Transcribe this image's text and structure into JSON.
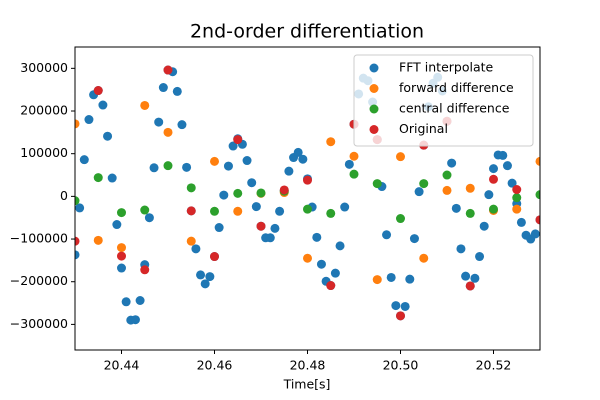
{
  "chart_data": {
    "type": "scatter",
    "title": "2nd-order differentiation",
    "x_label": "Time[s]",
    "xlim": [
      20.43,
      20.53
    ],
    "ylim": [
      -360000,
      350000
    ],
    "xticks": [
      20.44,
      20.46,
      20.48,
      {
        "value": 20.5,
        "label": "20.50"
      },
      20.52
    ],
    "yticks": [
      {
        "value": -300000,
        "label": "−300000"
      },
      {
        "value": -200000,
        "label": "−200000"
      },
      {
        "value": -100000,
        "label": "−100000"
      },
      0,
      100000,
      200000,
      300000
    ],
    "grid": false,
    "legend": "upper right",
    "series": [
      {
        "name": "FFT interpolate",
        "color": "#1f77b4",
        "x": [
          20.43,
          20.431,
          20.432,
          20.433,
          20.434,
          20.435,
          20.436,
          20.437,
          20.438,
          20.439,
          20.44,
          20.441,
          20.442,
          20.443,
          20.444,
          20.445,
          20.446,
          20.447,
          20.448,
          20.449,
          20.45,
          20.451,
          20.452,
          20.453,
          20.454,
          20.455,
          20.456,
          20.457,
          20.458,
          20.459,
          20.46,
          20.461,
          20.462,
          20.463,
          20.464,
          20.465,
          20.466,
          20.467,
          20.468,
          20.469,
          20.47,
          20.471,
          20.472,
          20.473,
          20.474,
          20.475,
          20.476,
          20.477,
          20.478,
          20.479,
          20.48,
          20.481,
          20.482,
          20.483,
          20.484,
          20.485,
          20.486,
          20.487,
          20.488,
          20.489,
          20.49,
          20.491,
          20.492,
          20.493,
          20.494,
          20.495,
          20.496,
          20.497,
          20.498,
          20.499,
          20.5,
          20.501,
          20.502,
          20.503,
          20.504,
          20.505,
          20.506,
          20.507,
          20.508,
          20.509,
          20.51,
          20.511,
          20.512,
          20.513,
          20.514,
          20.515,
          20.516,
          20.517,
          20.518,
          20.519,
          20.52,
          20.521,
          20.522,
          20.523,
          20.524,
          20.525,
          20.526,
          20.527,
          20.528,
          20.529,
          20.53
        ],
        "values": [
          -137000,
          -27000,
          86000,
          180000,
          238000,
          248000,
          214000,
          141000,
          43000,
          -66000,
          -168000,
          -247000,
          -290000,
          -289000,
          -244000,
          -160000,
          -50000,
          67000,
          174000,
          255000,
          296000,
          292000,
          246000,
          168000,
          68000,
          -34000,
          -123000,
          -184000,
          -205000,
          -188000,
          -141000,
          -73000,
          3000,
          71000,
          118000,
          135000,
          122000,
          84000,
          32000,
          -24000,
          -70000,
          -97000,
          -97000,
          -75000,
          -35000,
          14000,
          59000,
          91000,
          103000,
          87000,
          41000,
          -25000,
          -96000,
          -159000,
          -199000,
          -209000,
          -180000,
          -116000,
          -25000,
          75000,
          169000,
          240000,
          277000,
          271000,
          221000,
          133000,
          23000,
          -90000,
          -190000,
          -256000,
          -280000,
          -258000,
          -194000,
          -99000,
          11000,
          120000,
          210000,
          265000,
          279000,
          247000,
          176000,
          78000,
          -28000,
          -123000,
          -187000,
          -210000,
          -192000,
          -141000,
          -70000,
          4000,
          65000,
          97000,
          96000,
          72000,
          31000,
          -17000,
          -61000,
          -91000,
          -100000,
          -88000,
          -55000
        ]
      },
      {
        "name": "forward difference",
        "color": "#ff7f0e",
        "x": [
          20.43,
          20.435,
          20.44,
          20.445,
          20.45,
          20.455,
          20.46,
          20.465,
          20.47,
          20.475,
          20.48,
          20.485,
          20.49,
          20.495,
          20.5,
          20.505,
          20.51,
          20.515,
          20.52,
          20.525,
          20.53
        ],
        "values": [
          170000,
          -103000,
          -120000,
          213000,
          150000,
          -105000,
          82000,
          -35000,
          7000,
          9000,
          -145000,
          128000,
          94000,
          -195000,
          93000,
          -145000,
          14000,
          19000,
          -33000,
          -30000,
          82000
        ]
      },
      {
        "name": "central difference",
        "color": "#2ca02c",
        "x": [
          20.43,
          20.435,
          20.44,
          20.445,
          20.45,
          20.455,
          20.46,
          20.465,
          20.47,
          20.475,
          20.48,
          20.485,
          20.49,
          20.495,
          20.5,
          20.505,
          20.51,
          20.515,
          20.52,
          20.525,
          20.53
        ],
        "values": [
          -10000,
          44000,
          -38000,
          -32000,
          72000,
          20000,
          -35000,
          7000,
          8000,
          12000,
          -30000,
          -40000,
          52000,
          30000,
          -52000,
          30000,
          50000,
          -40000,
          -30000,
          -3000,
          4000
        ]
      },
      {
        "name": "Original",
        "color": "#d62728",
        "x": [
          20.43,
          20.435,
          20.44,
          20.445,
          20.45,
          20.455,
          20.46,
          20.465,
          20.47,
          20.475,
          20.48,
          20.485,
          20.49,
          20.495,
          20.5,
          20.505,
          20.51,
          20.515,
          20.52,
          20.525,
          20.53
        ],
        "values": [
          -105000,
          248000,
          -140000,
          -172000,
          296000,
          -34000,
          -141000,
          133000,
          -70000,
          15000,
          38000,
          -209000,
          169000,
          133000,
          -280000,
          120000,
          176000,
          -210000,
          40000,
          16000,
          -55000
        ]
      }
    ]
  }
}
